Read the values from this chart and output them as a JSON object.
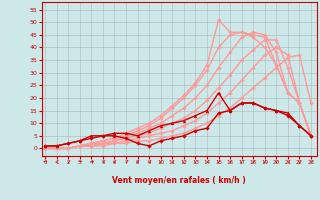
{
  "xlabel": "Vent moyen/en rafales ( km/h )",
  "background_color": "#cce8e8",
  "grid_color": "#aaaaaa",
  "xticks": [
    0,
    1,
    2,
    3,
    4,
    5,
    6,
    7,
    8,
    9,
    10,
    11,
    12,
    13,
    14,
    15,
    16,
    17,
    18,
    19,
    20,
    21,
    22,
    23
  ],
  "yticks": [
    0,
    5,
    10,
    15,
    20,
    25,
    30,
    35,
    40,
    45,
    50,
    55
  ],
  "ylim": [
    -3,
    58
  ],
  "xlim": [
    -0.3,
    23.5
  ],
  "lines_light": [
    {
      "x": [
        0,
        1,
        2,
        3,
        4,
        5,
        6,
        7,
        8,
        9,
        10,
        11,
        12,
        13,
        14,
        15,
        16,
        17,
        18,
        19,
        20,
        21,
        22,
        23
      ],
      "y": [
        0,
        0,
        0,
        1,
        1,
        1,
        2,
        2,
        3,
        3,
        4,
        5,
        6,
        8,
        10,
        13,
        16,
        20,
        24,
        28,
        32,
        36,
        37,
        18
      ],
      "color": "#ff9999",
      "linewidth": 1.0,
      "marker": "D",
      "markersize": 1.8
    },
    {
      "x": [
        0,
        1,
        2,
        3,
        4,
        5,
        6,
        7,
        8,
        9,
        10,
        11,
        12,
        13,
        14,
        15,
        16,
        17,
        18,
        19,
        20,
        21,
        22,
        23
      ],
      "y": [
        0,
        0,
        0,
        1,
        1,
        2,
        2,
        3,
        4,
        5,
        6,
        7,
        9,
        11,
        14,
        18,
        22,
        27,
        32,
        37,
        40,
        37,
        18,
        5
      ],
      "color": "#ff9999",
      "linewidth": 1.0,
      "marker": "D",
      "markersize": 1.8
    },
    {
      "x": [
        0,
        1,
        2,
        3,
        4,
        5,
        6,
        7,
        8,
        9,
        10,
        11,
        12,
        13,
        14,
        15,
        16,
        17,
        18,
        19,
        20,
        21,
        22,
        23
      ],
      "y": [
        0,
        0,
        0,
        1,
        1,
        2,
        3,
        4,
        5,
        6,
        8,
        10,
        12,
        15,
        19,
        24,
        29,
        35,
        39,
        43,
        43,
        32,
        18,
        5
      ],
      "color": "#ff9999",
      "linewidth": 1.0,
      "marker": "D",
      "markersize": 1.8
    },
    {
      "x": [
        0,
        1,
        2,
        3,
        4,
        5,
        6,
        7,
        8,
        9,
        10,
        11,
        12,
        13,
        14,
        15,
        16,
        17,
        18,
        19,
        20,
        21,
        22,
        23
      ],
      "y": [
        0,
        0,
        0,
        1,
        2,
        2,
        3,
        5,
        6,
        8,
        10,
        13,
        16,
        20,
        25,
        32,
        38,
        44,
        46,
        45,
        38,
        22,
        18,
        5
      ],
      "color": "#ff9999",
      "linewidth": 1.0,
      "marker": "D",
      "markersize": 1.8
    },
    {
      "x": [
        0,
        1,
        2,
        3,
        4,
        5,
        6,
        7,
        8,
        9,
        10,
        11,
        12,
        13,
        14,
        15,
        16,
        17,
        18,
        19,
        20,
        21,
        22,
        23
      ],
      "y": [
        0,
        0,
        0,
        1,
        2,
        3,
        4,
        5,
        7,
        9,
        12,
        16,
        20,
        25,
        31,
        40,
        45,
        46,
        45,
        44,
        33,
        22,
        18,
        5
      ],
      "color": "#ff9999",
      "linewidth": 1.0,
      "marker": "D",
      "markersize": 1.8
    },
    {
      "x": [
        0,
        1,
        2,
        3,
        4,
        5,
        6,
        7,
        8,
        9,
        10,
        11,
        12,
        13,
        14,
        15,
        16,
        17,
        18,
        19,
        20,
        21,
        22,
        23
      ],
      "y": [
        0,
        0,
        0,
        1,
        2,
        3,
        4,
        6,
        8,
        10,
        13,
        17,
        21,
        26,
        33,
        51,
        46,
        46,
        44,
        40,
        33,
        22,
        18,
        5
      ],
      "color": "#ff9999",
      "linewidth": 1.0,
      "marker": "D",
      "markersize": 1.8
    }
  ],
  "lines_dark": [
    {
      "x": [
        0,
        1,
        2,
        3,
        4,
        5,
        6,
        7,
        8,
        9,
        10,
        11,
        12,
        13,
        14,
        15,
        16,
        17,
        18,
        19,
        20,
        21,
        22,
        23
      ],
      "y": [
        1,
        1,
        2,
        3,
        4,
        5,
        5,
        4,
        2,
        1,
        3,
        4,
        5,
        7,
        8,
        14,
        15,
        18,
        18,
        16,
        15,
        13,
        9,
        5
      ],
      "color": "#cc0000",
      "linewidth": 1.0,
      "marker": "D",
      "markersize": 1.8
    },
    {
      "x": [
        0,
        1,
        2,
        3,
        4,
        5,
        6,
        7,
        8,
        9,
        10,
        11,
        12,
        13,
        14,
        15,
        16,
        17,
        18,
        19,
        20,
        21,
        22,
        23
      ],
      "y": [
        1,
        1,
        2,
        3,
        5,
        5,
        6,
        6,
        5,
        7,
        9,
        10,
        11,
        13,
        15,
        22,
        15,
        18,
        18,
        16,
        15,
        14,
        9,
        5
      ],
      "color": "#cc0000",
      "linewidth": 1.0,
      "marker": "^",
      "markersize": 2.0
    }
  ],
  "wind_arrows": [
    "→",
    "↙",
    "↙",
    "→",
    "→",
    "↙",
    "↙",
    "↙",
    "↙",
    "↙",
    "↙",
    "↙",
    "↙",
    "↙",
    "↙",
    "↙",
    "↙",
    "↙",
    "↙",
    "↙",
    "↙",
    "↙",
    "↙",
    "↙"
  ]
}
